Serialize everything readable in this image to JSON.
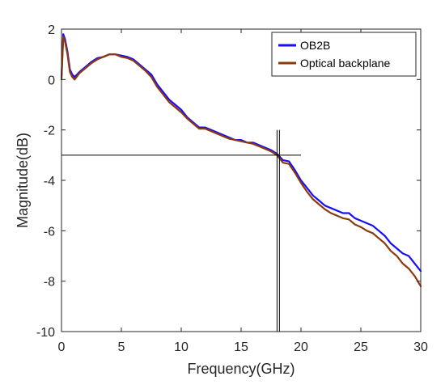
{
  "chart_data": {
    "type": "line",
    "title": "",
    "xlabel": "Frequency(GHz)",
    "ylabel": "Magnitude(dB)",
    "xlim": [
      0,
      30
    ],
    "ylim": [
      -10,
      2
    ],
    "xticks": [
      0,
      5,
      10,
      15,
      20,
      25,
      30
    ],
    "yticks": [
      -10,
      -8,
      -6,
      -4,
      -2,
      0,
      2
    ],
    "grid": false,
    "legend_position": "top-right",
    "series": [
      {
        "name": "OB2B",
        "color": "#1a0dff",
        "x": [
          0,
          0.15,
          0.3,
          0.5,
          0.7,
          0.9,
          1.1,
          1.5,
          2.0,
          2.5,
          3.0,
          3.5,
          4.0,
          4.5,
          5.0,
          5.5,
          6.0,
          6.5,
          7.0,
          7.5,
          8.0,
          8.5,
          9.0,
          9.5,
          10.0,
          10.5,
          11.0,
          11.5,
          12.0,
          12.5,
          13.0,
          13.5,
          14.0,
          14.5,
          15.0,
          15.5,
          16.0,
          16.5,
          17.0,
          17.5,
          18.0,
          18.5,
          19.0,
          19.5,
          20.0,
          20.5,
          21.0,
          21.5,
          22.0,
          22.5,
          23.0,
          23.5,
          24.0,
          24.5,
          25.0,
          25.5,
          26.0,
          26.5,
          27.0,
          27.5,
          28.0,
          28.5,
          29.0,
          29.5,
          30.0
        ],
        "values": [
          0.1,
          1.8,
          1.6,
          1.1,
          0.4,
          0.2,
          0.1,
          0.3,
          0.5,
          0.7,
          0.85,
          0.9,
          1.0,
          1.0,
          0.95,
          0.9,
          0.8,
          0.6,
          0.4,
          0.2,
          -0.2,
          -0.5,
          -0.8,
          -1.0,
          -1.2,
          -1.5,
          -1.7,
          -1.9,
          -1.9,
          -2.0,
          -2.1,
          -2.2,
          -2.3,
          -2.4,
          -2.4,
          -2.5,
          -2.5,
          -2.6,
          -2.7,
          -2.8,
          -2.95,
          -3.2,
          -3.25,
          -3.6,
          -4.0,
          -4.3,
          -4.6,
          -4.8,
          -5.0,
          -5.1,
          -5.2,
          -5.3,
          -5.3,
          -5.5,
          -5.6,
          -5.7,
          -5.8,
          -6.0,
          -6.2,
          -6.5,
          -6.7,
          -6.9,
          -7.0,
          -7.3,
          -7.6
        ]
      },
      {
        "name": "Optical backplane",
        "color": "#8b3a0e",
        "x": [
          0,
          0.15,
          0.3,
          0.5,
          0.7,
          0.9,
          1.1,
          1.5,
          2.0,
          2.5,
          3.0,
          3.5,
          4.0,
          4.5,
          5.0,
          5.5,
          6.0,
          6.5,
          7.0,
          7.5,
          8.0,
          8.5,
          9.0,
          9.5,
          10.0,
          10.5,
          11.0,
          11.5,
          12.0,
          12.5,
          13.0,
          13.5,
          14.0,
          14.5,
          15.0,
          15.5,
          16.0,
          16.5,
          17.0,
          17.5,
          18.0,
          18.5,
          19.0,
          19.5,
          20.0,
          20.5,
          21.0,
          21.5,
          22.0,
          22.5,
          23.0,
          23.5,
          24.0,
          24.5,
          25.0,
          25.5,
          26.0,
          26.5,
          27.0,
          27.5,
          28.0,
          28.5,
          29.0,
          29.5,
          30.0
        ],
        "values": [
          0.0,
          1.7,
          1.5,
          1.0,
          0.3,
          0.1,
          0.0,
          0.25,
          0.45,
          0.65,
          0.8,
          0.9,
          1.0,
          1.0,
          0.9,
          0.85,
          0.75,
          0.55,
          0.35,
          0.1,
          -0.3,
          -0.6,
          -0.9,
          -1.1,
          -1.3,
          -1.55,
          -1.75,
          -1.95,
          -1.95,
          -2.05,
          -2.15,
          -2.25,
          -2.35,
          -2.4,
          -2.45,
          -2.5,
          -2.55,
          -2.65,
          -2.75,
          -2.85,
          -3.0,
          -3.3,
          -3.35,
          -3.7,
          -4.1,
          -4.45,
          -4.75,
          -4.95,
          -5.15,
          -5.3,
          -5.4,
          -5.5,
          -5.55,
          -5.75,
          -5.85,
          -6.0,
          -6.1,
          -6.3,
          -6.5,
          -6.8,
          -7.0,
          -7.3,
          -7.5,
          -7.8,
          -8.2
        ]
      }
    ],
    "annotations": {
      "horizontal_marker_y": -3,
      "horizontal_marker_x_range": [
        0,
        20
      ],
      "vertical_marker_x": [
        18.0,
        18.2
      ],
      "vertical_marker_y_range": [
        -10,
        -2
      ]
    }
  }
}
